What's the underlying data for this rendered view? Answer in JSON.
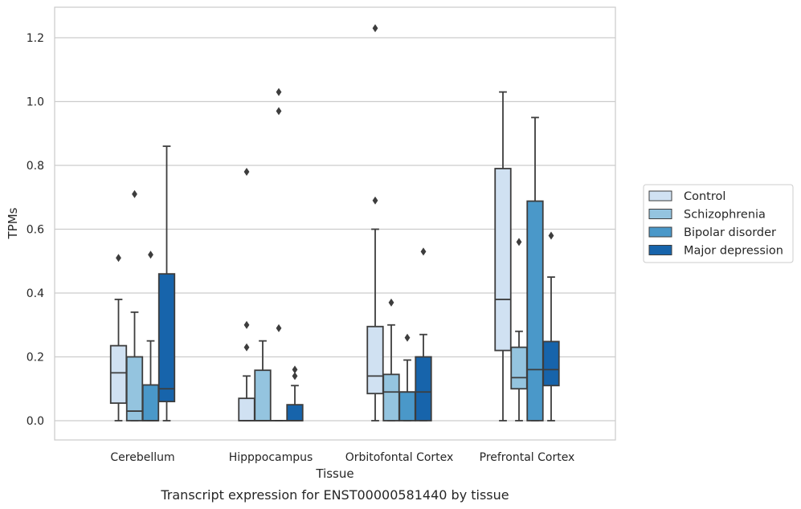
{
  "chart_data": {
    "type": "box",
    "title": "",
    "xlabel": "Tissue",
    "ylabel": "TPMs",
    "caption": "Transcript expression for ENST00000581440 by tissue",
    "categories": [
      "Cerebellum",
      "Hipppocampus",
      "Orbitofontal Cortex",
      "Prefrontal Cortex"
    ],
    "yticks": [
      "0.0",
      "0.2",
      "0.4",
      "0.6",
      "0.8",
      "1.0",
      "1.2"
    ],
    "ylim": [
      -0.06,
      1.29
    ],
    "grid": "horizontal",
    "legend_position": "right",
    "series": [
      {
        "name": "Control",
        "color": "#d0e1f2",
        "boxes": [
          {
            "whislo": 0.0,
            "q1": 0.055,
            "med": 0.15,
            "q3": 0.235,
            "whishi": 0.38,
            "fliers": [
              0.51
            ]
          },
          {
            "whislo": 0.0,
            "q1": 0.0,
            "med": 0.0,
            "q3": 0.07,
            "whishi": 0.14,
            "fliers": [
              0.23,
              0.3,
              0.78
            ]
          },
          {
            "whislo": 0.0,
            "q1": 0.085,
            "med": 0.14,
            "q3": 0.295,
            "whishi": 0.6,
            "fliers": [
              0.69,
              1.23
            ]
          },
          {
            "whislo": 0.0,
            "q1": 0.22,
            "med": 0.38,
            "q3": 0.79,
            "whishi": 1.03,
            "fliers": []
          }
        ]
      },
      {
        "name": "Schizophrenia",
        "color": "#94c4df",
        "boxes": [
          {
            "whislo": 0.0,
            "q1": 0.0,
            "med": 0.03,
            "q3": 0.2,
            "whishi": 0.34,
            "fliers": [
              0.71
            ]
          },
          {
            "whislo": 0.0,
            "q1": 0.0,
            "med": 0.0,
            "q3": 0.158,
            "whishi": 0.25,
            "fliers": []
          },
          {
            "whislo": 0.0,
            "q1": 0.0,
            "med": 0.09,
            "q3": 0.145,
            "whishi": 0.3,
            "fliers": [
              0.37
            ]
          },
          {
            "whislo": 0.0,
            "q1": 0.1,
            "med": 0.135,
            "q3": 0.23,
            "whishi": 0.28,
            "fliers": [
              0.56
            ]
          }
        ]
      },
      {
        "name": "Bipolar disorder",
        "color": "#4a98c9",
        "boxes": [
          {
            "whislo": 0.0,
            "q1": 0.0,
            "med": 0.0,
            "q3": 0.112,
            "whishi": 0.25,
            "fliers": [
              0.52
            ]
          },
          {
            "whislo": 0.0,
            "q1": 0.0,
            "med": 0.0,
            "q3": 0.0,
            "whishi": 0.0,
            "fliers": [
              0.29,
              0.97,
              1.03
            ]
          },
          {
            "whislo": 0.0,
            "q1": 0.0,
            "med": 0.09,
            "q3": 0.09,
            "whishi": 0.19,
            "fliers": [
              0.26
            ]
          },
          {
            "whislo": 0.0,
            "q1": 0.0,
            "med": 0.16,
            "q3": 0.688,
            "whishi": 0.95,
            "fliers": []
          }
        ]
      },
      {
        "name": "Major depression",
        "color": "#1764ab",
        "boxes": [
          {
            "whislo": 0.0,
            "q1": 0.06,
            "med": 0.1,
            "q3": 0.46,
            "whishi": 0.86,
            "fliers": []
          },
          {
            "whislo": 0.0,
            "q1": 0.0,
            "med": 0.0,
            "q3": 0.05,
            "whishi": 0.11,
            "fliers": [
              0.14,
              0.16
            ]
          },
          {
            "whislo": 0.0,
            "q1": 0.0,
            "med": 0.09,
            "q3": 0.2,
            "whishi": 0.27,
            "fliers": [
              0.53
            ]
          },
          {
            "whislo": 0.0,
            "q1": 0.11,
            "med": 0.16,
            "q3": 0.248,
            "whishi": 0.45,
            "fliers": [
              0.58
            ]
          }
        ]
      }
    ]
  }
}
